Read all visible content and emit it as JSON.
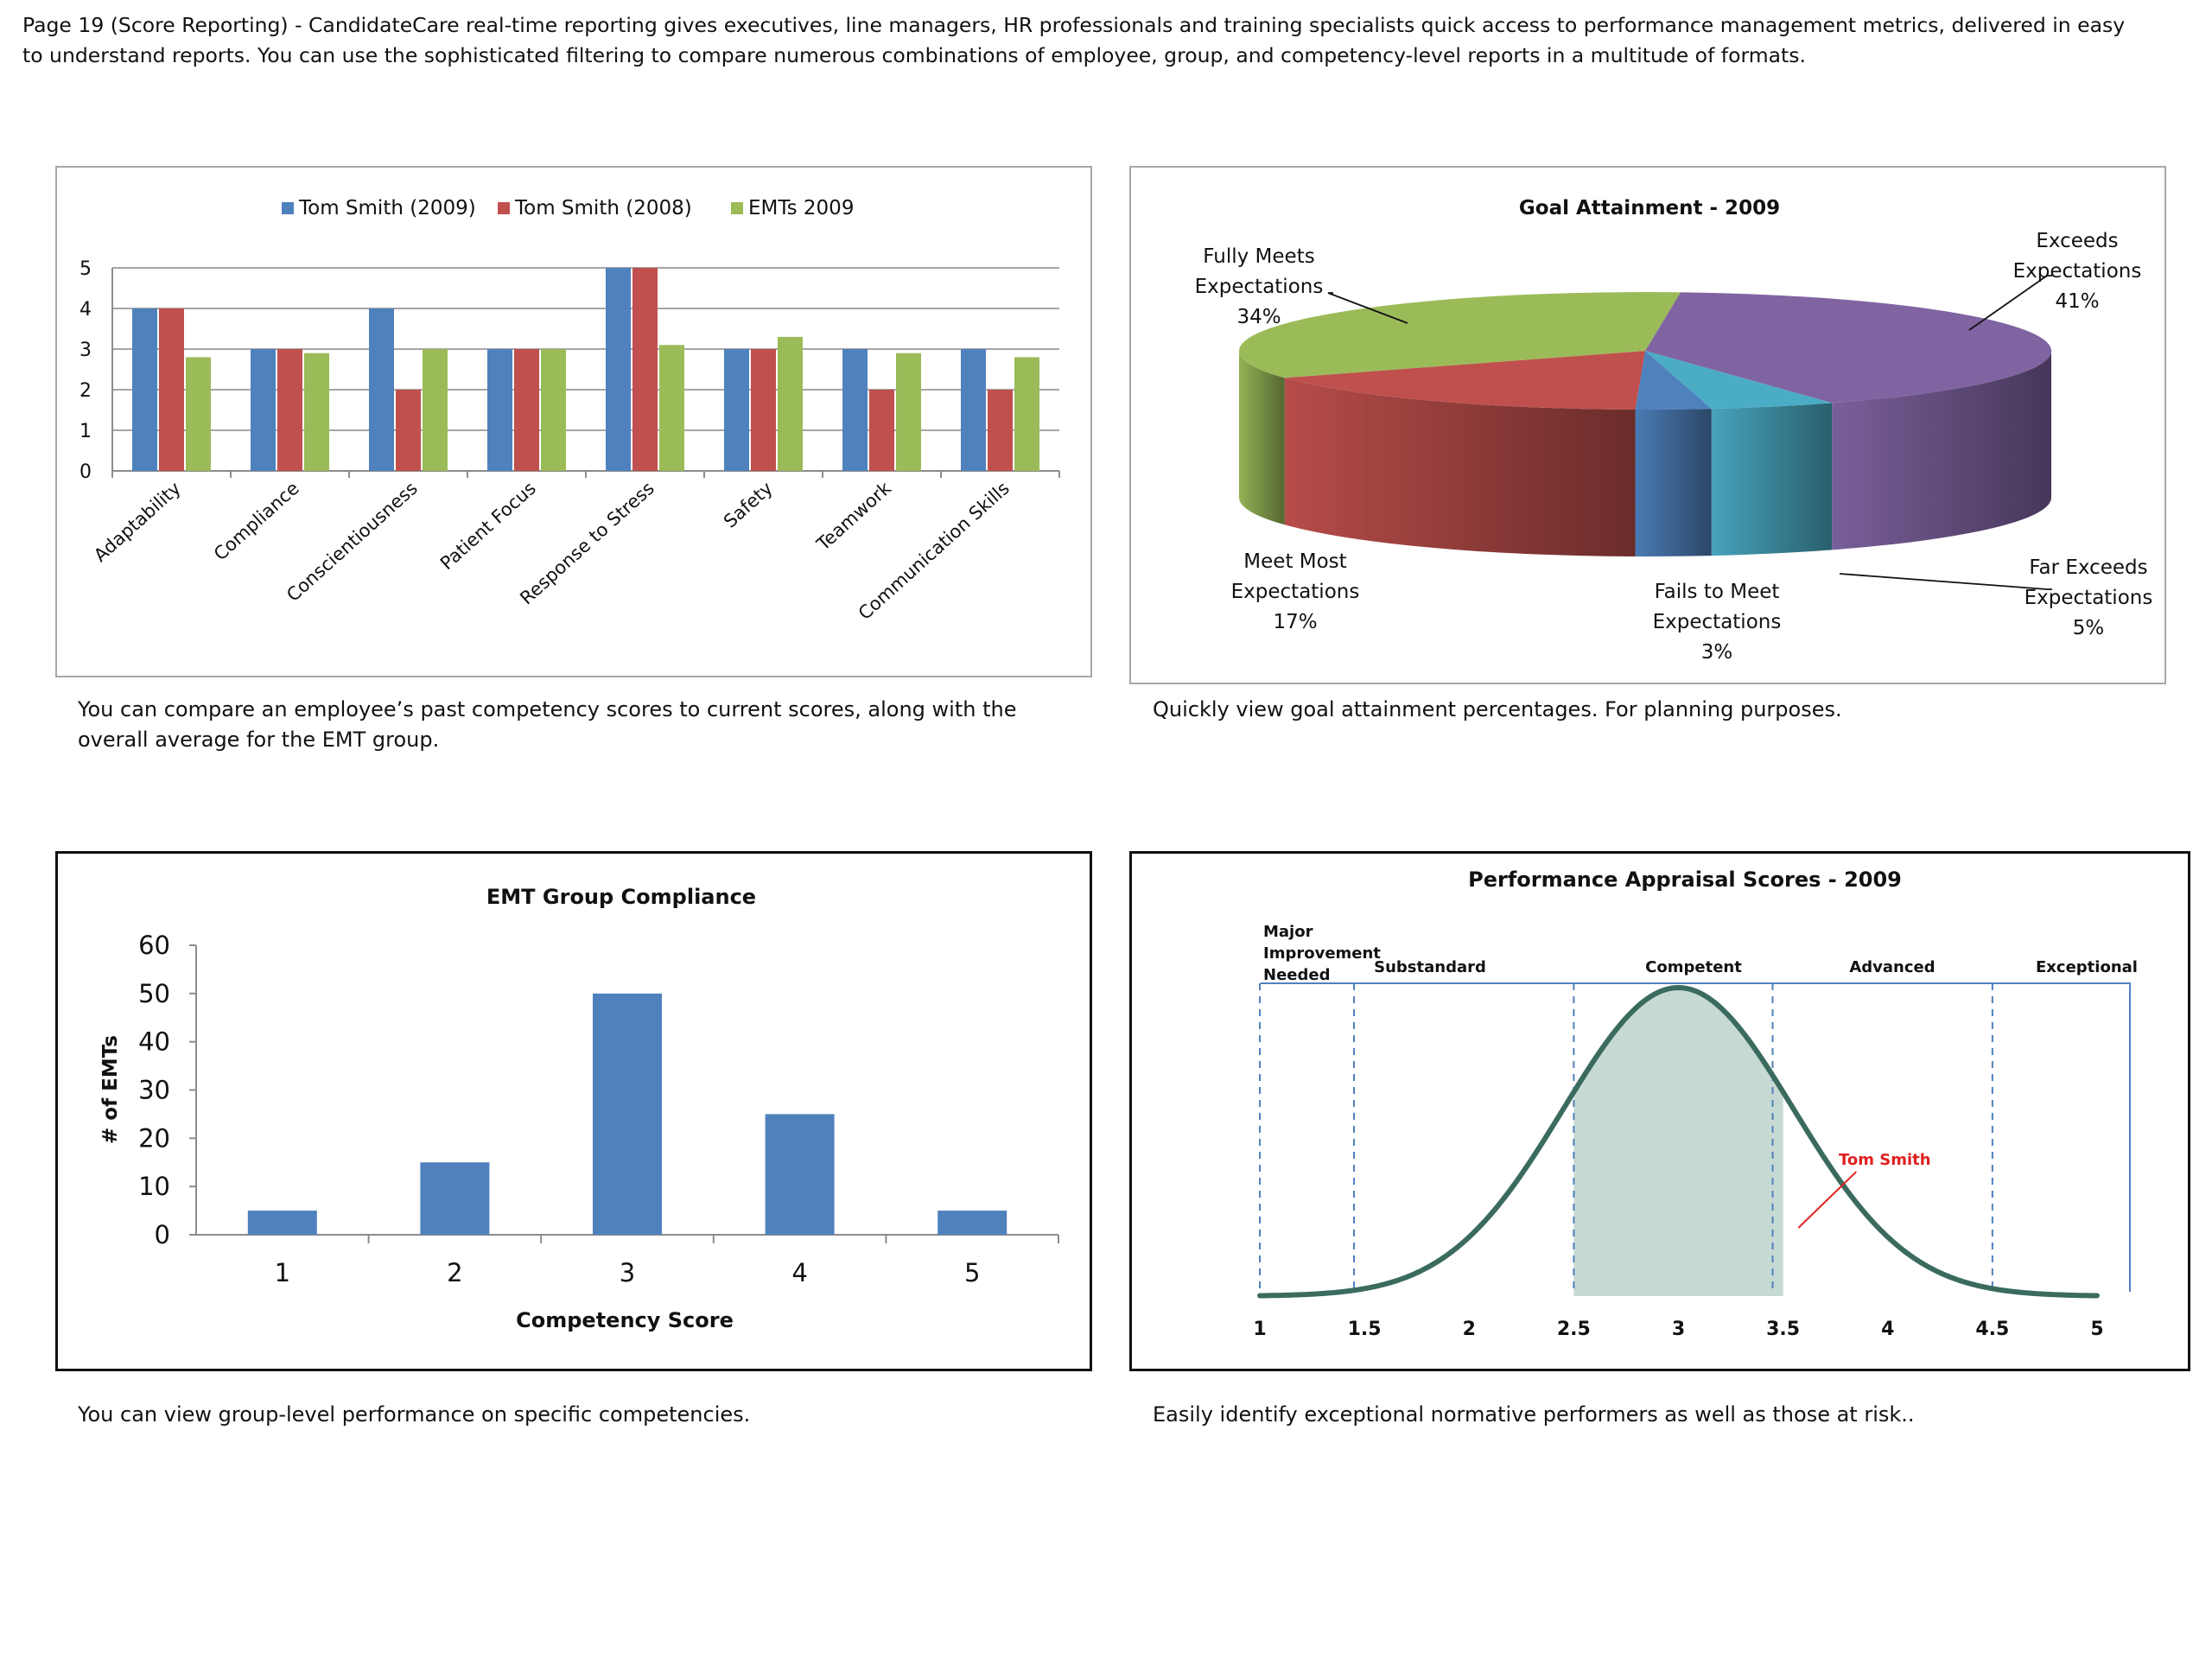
{
  "intro": "Page 19 (Score Reporting)  - CandidateCare real-time reporting gives executives, line managers, HR professionals and training specialists quick access to performance management metrics, delivered in easy to understand reports. You can use the sophisticated filtering to compare numerous combinations of employee, group, and competency-level reports in a multitude of formats.",
  "captions": {
    "competency": "You can compare an employee’s past competency scores to current scores, along with the overall average for the EMT group.",
    "goal": "Quickly view goal attainment percentages. For planning purposes.",
    "group": "You can view group-level performance on specific competencies.",
    "appraisal": "Easily identify exceptional normative performers as well as those at risk.."
  },
  "chart_data": [
    {
      "type": "bar",
      "title": "",
      "categories": [
        "Adaptability",
        "Compliance",
        "Conscientiousness",
        "Patient Focus",
        "Response to Stress",
        "Safety",
        "Teamwork",
        "Communication Skills"
      ],
      "series": [
        {
          "name": "Tom Smith (2009)",
          "color": "#4f81bd",
          "values": [
            4,
            3,
            4,
            3,
            5,
            3,
            3,
            3
          ]
        },
        {
          "name": "Tom Smith (2008)",
          "color": "#c0504d",
          "values": [
            4,
            3,
            2,
            3,
            5,
            3,
            2,
            2
          ]
        },
        {
          "name": "EMTs 2009",
          "color": "#9bbb59",
          "values": [
            2.8,
            2.9,
            3,
            3,
            3.1,
            3.3,
            2.9,
            2.8
          ]
        }
      ],
      "ylim": [
        0,
        5
      ],
      "yticks": [
        "0",
        "1",
        "2",
        "3",
        "4",
        "5"
      ],
      "legend": "top",
      "grid": true
    },
    {
      "type": "pie",
      "title": "Goal Attainment - 2009",
      "slices": [
        {
          "label_lines": [
            "Exceeds",
            "Expectations",
            "41%"
          ],
          "value": 41,
          "color": "#8064a2"
        },
        {
          "label_lines": [
            "Far Exceeds",
            "Expectations",
            "5%"
          ],
          "value": 5,
          "color": "#4bacc6"
        },
        {
          "label_lines": [
            "Fails to Meet",
            "Expectations",
            "3%"
          ],
          "value": 3,
          "color": "#4f81bd"
        },
        {
          "label_lines": [
            "Meet Most",
            "Expectations",
            "17%"
          ],
          "value": 17,
          "color": "#c0504d"
        },
        {
          "label_lines": [
            "Fully Meets",
            "Expectations",
            "34%"
          ],
          "value": 34,
          "color": "#9bbb59"
        }
      ]
    },
    {
      "type": "bar",
      "title": "EMT Group Compliance",
      "xlabel": "Competency Score",
      "ylabel": "# of EMTs",
      "categories": [
        "1",
        "2",
        "3",
        "4",
        "5"
      ],
      "values": [
        5,
        15,
        50,
        25,
        5
      ],
      "color": "#4f81bd",
      "ylim": [
        0,
        60
      ],
      "yticks": [
        "0",
        "10",
        "20",
        "30",
        "40",
        "50",
        "60"
      ]
    },
    {
      "type": "area",
      "title": "Performance Appraisal Scores - 2009",
      "xlim": [
        1,
        5
      ],
      "xticks": [
        "1",
        "1.5",
        "2",
        "2.5",
        "3",
        "3.5",
        "4",
        "4.5",
        "5"
      ],
      "bands": [
        {
          "label": "Major\nImprovement\nNeeded",
          "from": 1,
          "to": 1.45
        },
        {
          "label": "Substandard",
          "from": 1.45,
          "to": 2.5
        },
        {
          "label": "Competent",
          "from": 2.5,
          "to": 3.5
        },
        {
          "label": "Advanced",
          "from": 3.5,
          "to": 4.5
        },
        {
          "label": "Exceptional",
          "from": 4.5,
          "to": 5
        }
      ],
      "curve": {
        "mean": 3,
        "sd": 0.55,
        "color": "#3a6b5e"
      },
      "shaded": {
        "from": 2.5,
        "to": 3.5,
        "color": "#c7d9d3"
      },
      "marker": {
        "label": "Tom Smith",
        "x": 3.8,
        "color": "#e02020"
      }
    }
  ]
}
